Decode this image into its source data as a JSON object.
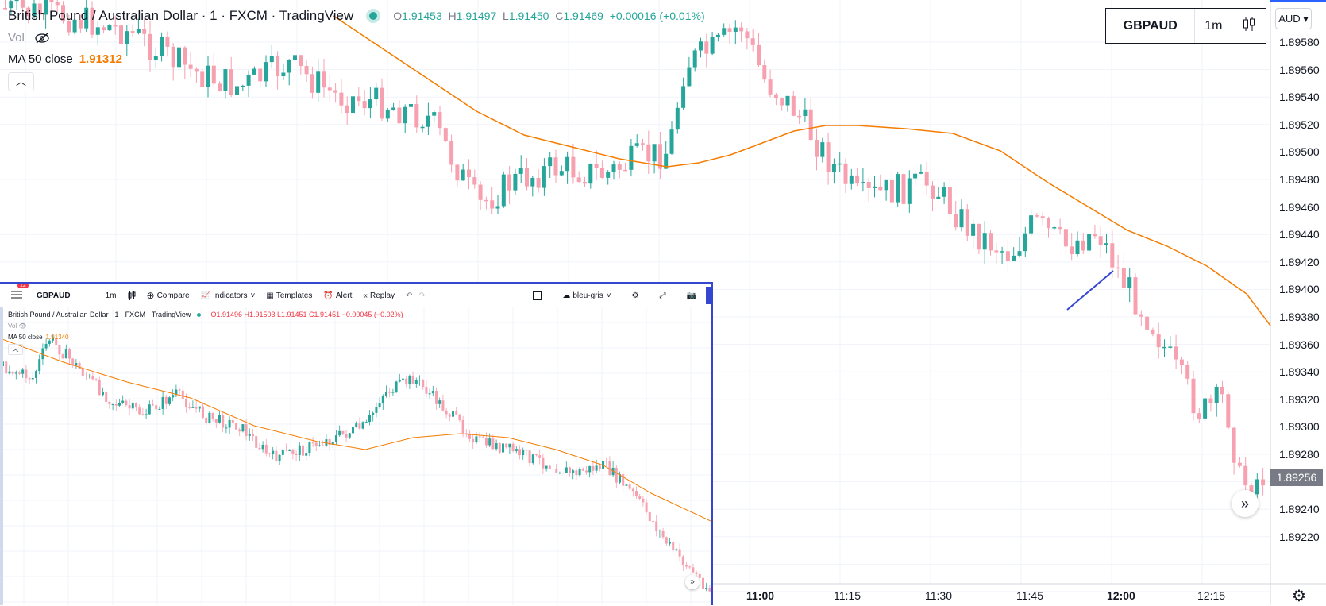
{
  "legend": {
    "title": "British Pound / Australian Dollar · 1 · FXCM · TradingView",
    "ohlc": {
      "o_label": "O",
      "o": "1.91453",
      "h_label": "H",
      "h": "1.91497",
      "l_label": "L",
      "l": "1.91450",
      "c_label": "C",
      "c": "1.91469",
      "change": "+0.00016 (+0.01%)"
    },
    "vol_label": "Vol",
    "ma_label": "MA 50 close",
    "ma_value": "1.91312"
  },
  "symbol_box": {
    "symbol": "GBPAUD",
    "interval": "1m"
  },
  "price_axis": {
    "currency": "AUD",
    "ticks": [
      "1.89580",
      "1.89560",
      "1.89540",
      "1.89520",
      "1.89500",
      "1.89480",
      "1.89460",
      "1.89440",
      "1.89420",
      "1.89400",
      "1.89380",
      "1.89360",
      "1.89340",
      "1.89320",
      "1.89300",
      "1.89280",
      "1.89240",
      "1.89220"
    ],
    "last_price": "1.89256"
  },
  "time_axis": {
    "ticks": [
      "11:00",
      "11:15",
      "11:30",
      "11:45",
      "12:00",
      "12:15"
    ]
  },
  "colors": {
    "up": "#26a69a",
    "down": "#f7a1b0",
    "ma": "#f57c00",
    "drawing": "#3547d1"
  },
  "chart_data": {
    "type": "candlestick",
    "series": [
      {
        "name": "MA 50 close"
      }
    ],
    "y_range": [
      1.892,
      1.896
    ],
    "x_ticks": [
      "11:00",
      "11:15",
      "11:30",
      "11:45",
      "12:00",
      "12:15"
    ]
  },
  "inset": {
    "toolbar": {
      "notification_count": "12",
      "symbol": "GBPAUD",
      "interval": "1m",
      "compare": "Compare",
      "indicators": "Indicators",
      "templates": "Templates",
      "alert": "Alert",
      "replay": "Replay",
      "layout_name": "bleu-gris"
    },
    "legend": {
      "title": "British Pound / Australian Dollar · 1 · FXCM · TradingView",
      "ohlc": "O1.91496 H1.91503 L1.91451 C1.91451 −0.00045 (−0.02%)",
      "vol_label": "Vol",
      "ma_label": "MA 50 close",
      "ma_value": "1.91340"
    }
  }
}
